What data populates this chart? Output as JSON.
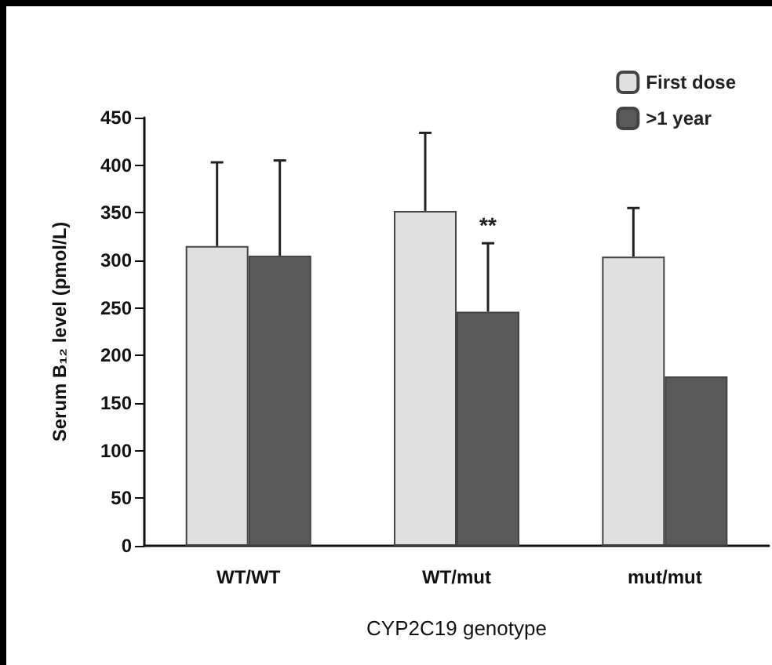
{
  "chart_data": {
    "type": "bar",
    "xlabel": "CYP2C19 genotype",
    "ylabel": "Serum B₁₂ level (pmol/L)",
    "categories": [
      "WT/WT",
      "WT/mut",
      "mut/mut"
    ],
    "series": [
      {
        "name": "First dose",
        "color": "#e0e0e0",
        "values": [
          315,
          352,
          304
        ],
        "errors": [
          [
            315,
            403
          ],
          [
            352,
            434
          ],
          [
            304,
            355
          ]
        ]
      },
      {
        "name": ">1 year",
        "color": "#595959",
        "values": [
          305,
          246,
          178
        ],
        "errors": [
          [
            305,
            405
          ],
          [
            246,
            318
          ],
          null
        ]
      }
    ],
    "ylim": [
      0,
      450
    ],
    "yticks": [
      0,
      50,
      100,
      150,
      200,
      250,
      300,
      350,
      400,
      450
    ],
    "grid": false,
    "legend": "top right",
    "annotations": [
      {
        "text": "**",
        "x": "WT/mut",
        "y": 337
      }
    ]
  }
}
